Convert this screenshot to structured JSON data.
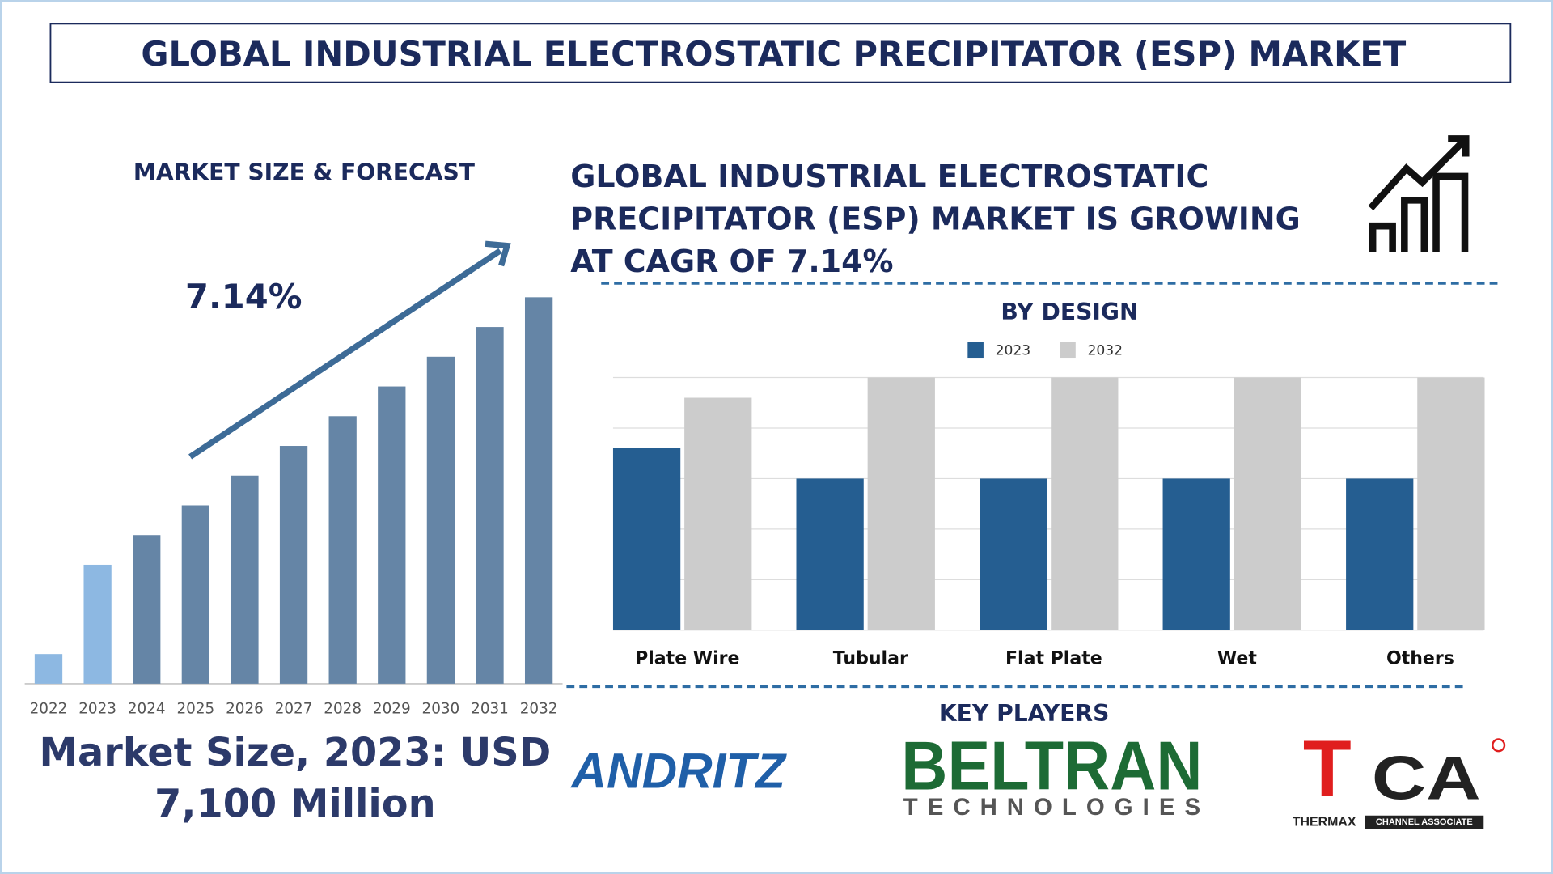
{
  "title": "GLOBAL INDUSTRIAL ELECTROSTATIC PRECIPITATOR (ESP) MARKET",
  "forecast_heading": "MARKET SIZE & FORECAST",
  "cagr_label": "7.14%",
  "growth_statement": [
    "GLOBAL INDUSTRIAL ELECTROSTATIC",
    "PRECIPITATOR (ESP) MARKET IS GROWING",
    "AT CAGR OF 7.14%"
  ],
  "market_size": [
    "Market Size, 2023: USD",
    "7,100 Million"
  ],
  "key_players": {
    "heading": "KEY PLAYERS",
    "logos": [
      "ANDRITZ",
      "BELTRAN",
      "TECHNOLOGIES",
      "T",
      "CA",
      "THERMAX",
      "CHANNEL ASSOCIATE"
    ]
  },
  "chart_data": [
    {
      "type": "bar",
      "categories": [
        "2022",
        "2023",
        "2024",
        "2025",
        "2026",
        "2027",
        "2028",
        "2029",
        "2030",
        "2031",
        "2032"
      ],
      "values": [
        1,
        4,
        5,
        6,
        7,
        8,
        9,
        10,
        11,
        12,
        13
      ],
      "colors": [
        "#8db8e2",
        "#8db8e2",
        "#6585a6",
        "#6585a6",
        "#6585a6",
        "#6585a6",
        "#6585a6",
        "#6585a6",
        "#6585a6",
        "#6585a6",
        "#6585a6"
      ],
      "ylim": [
        0,
        13
      ]
    },
    {
      "type": "grouped_bar",
      "title": "BY DESIGN",
      "categories": [
        "Plate Wire",
        "Tubular",
        "Flat Plate",
        "Wet",
        "Others"
      ],
      "series": [
        {
          "name": "2023",
          "color": "#255e91",
          "values": [
            3.6,
            3,
            3,
            3,
            3
          ]
        },
        {
          "name": "2032",
          "color": "#cccccc",
          "values": [
            4.6,
            5,
            5,
            5,
            5
          ]
        }
      ],
      "ylim": [
        0,
        5
      ],
      "yticks": [
        0,
        1,
        2,
        3,
        4,
        5
      ],
      "grid": true
    }
  ]
}
